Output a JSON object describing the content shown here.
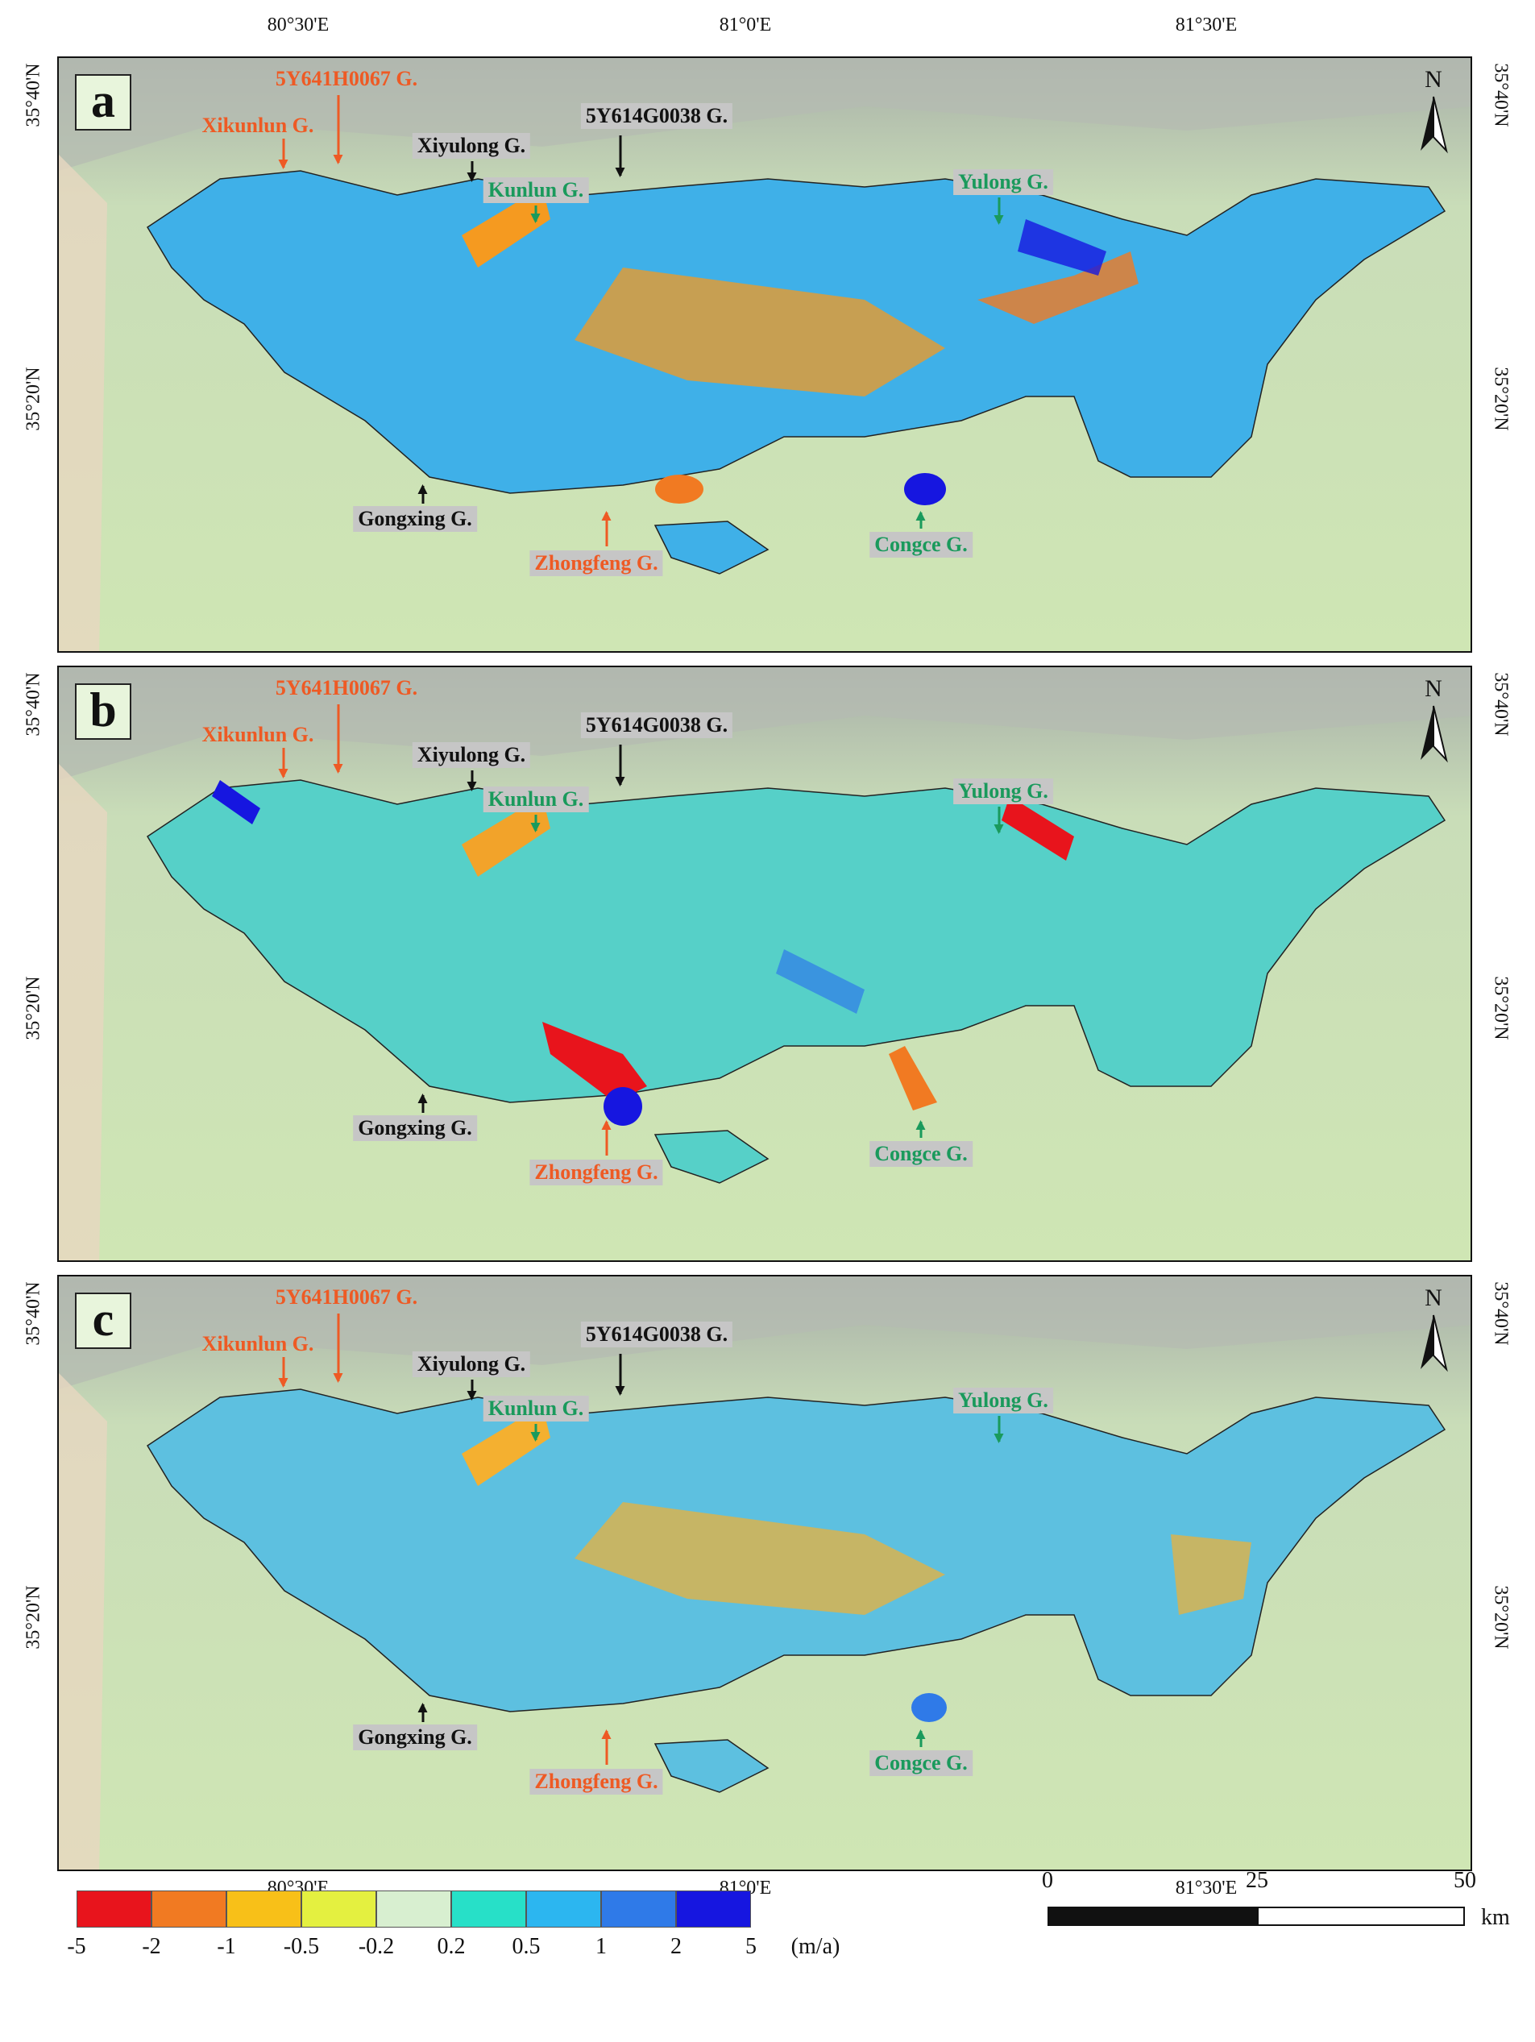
{
  "axes": {
    "lon_labels": [
      "80°30'E",
      "81°0'E",
      "81°30'E"
    ],
    "lat_labels": [
      "35°40'N",
      "35°20'N"
    ]
  },
  "panels": [
    {
      "letter": "a",
      "show_lon_top": true,
      "show_lon_bottom": false,
      "colors": {
        "body": "#3fb0e8",
        "hot": "#f59a20"
      }
    },
    {
      "letter": "b",
      "show_lon_top": false,
      "show_lon_bottom": false,
      "colors": {
        "body": "#56d0c8",
        "hot": "#f2a32a"
      }
    },
    {
      "letter": "c",
      "show_lon_top": false,
      "show_lon_bottom": true,
      "colors": {
        "body": "#5dc0e0",
        "hot": "#f4b030"
      }
    }
  ],
  "glacier_labels": {
    "xikunlun": "Xikunlun G.",
    "g5y641": "5Y641H0067 G.",
    "xiyulong": "Xiyulong G.",
    "g5y614": "5Y614G0038 G.",
    "kunlun": "Kunlun G.",
    "yulong": "Yulong G.",
    "gongxing": "Gongxing G.",
    "zhongfeng": "Zhongfeng G.",
    "congce": "Congce G."
  },
  "north_label": "N",
  "legend": {
    "colors": [
      "#e8141c",
      "#f17a22",
      "#f8c018",
      "#e4f040",
      "#d8efd0",
      "#27e0c8",
      "#2cb6f0",
      "#2f7ae8",
      "#1616e0"
    ],
    "ticks": [
      "-5",
      "-2",
      "-1",
      "-0.5",
      "-0.2",
      "0.2",
      "0.5",
      "1",
      "2",
      "5"
    ],
    "unit": "(m/a)"
  },
  "scale_bar": {
    "ticks": [
      "0",
      "25",
      "50"
    ],
    "unit": "km"
  }
}
